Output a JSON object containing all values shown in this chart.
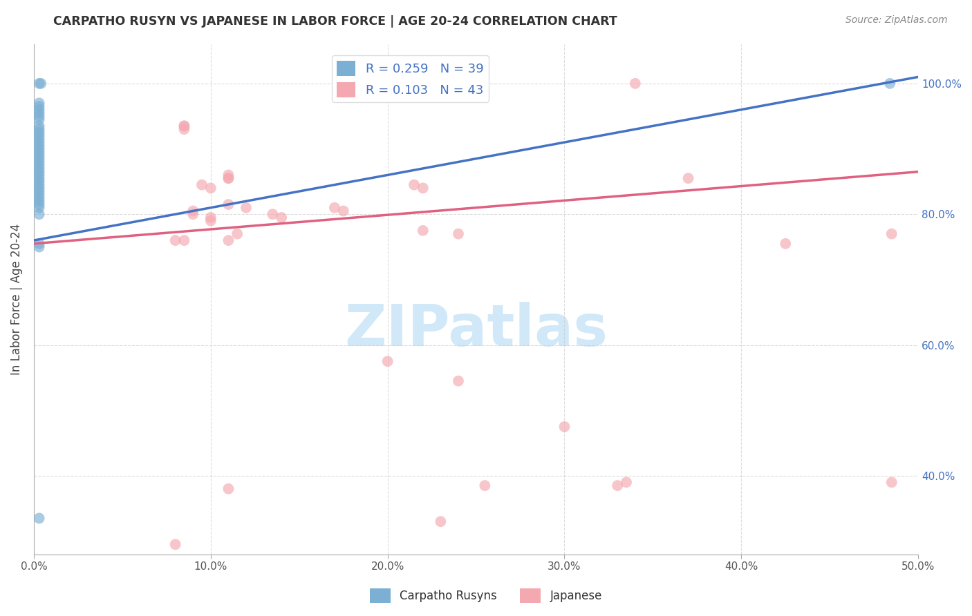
{
  "title": "CARPATHO RUSYN VS JAPANESE IN LABOR FORCE | AGE 20-24 CORRELATION CHART",
  "source": "Source: ZipAtlas.com",
  "ylabel": "In Labor Force | Age 20-24",
  "xlim": [
    0.0,
    0.5
  ],
  "ylim": [
    0.28,
    1.06
  ],
  "xticks": [
    0.0,
    0.1,
    0.2,
    0.3,
    0.4,
    0.5
  ],
  "yticks": [
    0.4,
    0.6,
    0.8,
    1.0
  ],
  "ytick_labels": [
    "40.0%",
    "60.0%",
    "80.0%",
    "100.0%"
  ],
  "xtick_labels": [
    "0.0%",
    "10.0%",
    "20.0%",
    "30.0%",
    "40.0%",
    "50.0%"
  ],
  "blue_R": 0.259,
  "blue_N": 39,
  "pink_R": 0.103,
  "pink_N": 43,
  "blue_scatter_x": [
    0.003,
    0.004,
    0.003,
    0.003,
    0.003,
    0.003,
    0.003,
    0.003,
    0.003,
    0.003,
    0.003,
    0.003,
    0.003,
    0.003,
    0.003,
    0.003,
    0.003,
    0.003,
    0.003,
    0.003,
    0.003,
    0.003,
    0.003,
    0.003,
    0.003,
    0.003,
    0.003,
    0.003,
    0.003,
    0.003,
    0.003,
    0.003,
    0.003,
    0.003,
    0.003,
    0.003,
    0.003,
    0.484,
    0.003
  ],
  "blue_scatter_y": [
    1.0,
    1.0,
    0.97,
    0.965,
    0.96,
    0.955,
    0.95,
    0.945,
    0.935,
    0.93,
    0.925,
    0.92,
    0.915,
    0.91,
    0.905,
    0.9,
    0.895,
    0.89,
    0.885,
    0.88,
    0.875,
    0.87,
    0.865,
    0.86,
    0.855,
    0.85,
    0.845,
    0.84,
    0.835,
    0.83,
    0.825,
    0.82,
    0.815,
    0.81,
    0.8,
    0.755,
    0.75,
    1.0,
    0.335
  ],
  "pink_scatter_x": [
    0.19,
    0.2,
    0.085,
    0.085,
    0.11,
    0.11,
    0.095,
    0.1,
    0.135,
    0.14,
    0.215,
    0.22,
    0.11,
    0.12,
    0.09,
    0.09,
    0.1,
    0.1,
    0.22,
    0.085,
    0.17,
    0.175,
    0.24,
    0.11,
    0.37,
    0.2,
    0.3,
    0.255,
    0.33,
    0.085,
    0.24,
    0.23,
    0.335,
    0.485,
    0.34,
    0.115,
    0.425,
    0.485,
    0.11,
    0.11,
    0.08,
    0.08
  ],
  "pink_scatter_y": [
    1.0,
    1.0,
    0.935,
    0.93,
    0.855,
    0.86,
    0.845,
    0.84,
    0.8,
    0.795,
    0.845,
    0.84,
    0.815,
    0.81,
    0.805,
    0.8,
    0.795,
    0.79,
    0.775,
    0.935,
    0.81,
    0.805,
    0.77,
    0.76,
    0.855,
    0.575,
    0.475,
    0.385,
    0.385,
    0.76,
    0.545,
    0.33,
    0.39,
    0.39,
    1.0,
    0.77,
    0.755,
    0.77,
    0.855,
    0.38,
    0.295,
    0.76
  ],
  "blue_color": "#7BAFD4",
  "pink_color": "#F4A8B0",
  "blue_line_color": "#4472C4",
  "pink_line_color": "#E06080",
  "watermark_text": "ZIPatlas",
  "watermark_color": "#D0E8F8",
  "background_color": "#FFFFFF",
  "grid_color": "#CCCCCC",
  "legend_label_color": "#4472C4"
}
